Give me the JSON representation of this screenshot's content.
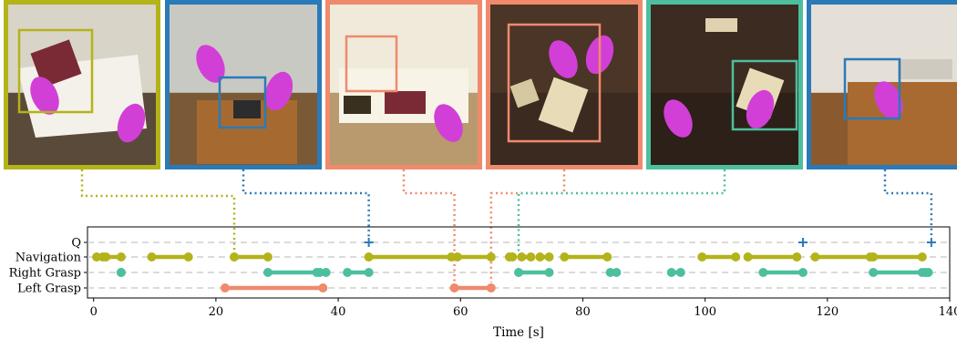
{
  "colors": {
    "navigation": "#b3b31a",
    "right_grasp": "#4dbf9e",
    "left_grasp": "#ef8a6d",
    "query": "#2a7ab8"
  },
  "thumbnails": [
    {
      "border": "#b3b31a",
      "scene": "office-table-book-hand"
    },
    {
      "border": "#2a7ab8",
      "scene": "shelf-hands-reaching"
    },
    {
      "border": "#ef8a6d",
      "scene": "table-books-hand"
    },
    {
      "border": "#ef8a6d",
      "scene": "floor-books-hands"
    },
    {
      "border": "#4dbf9e",
      "scene": "floor-book-hand"
    },
    {
      "border": "#2a7ab8",
      "scene": "corner-shelf-hand"
    }
  ],
  "chart_data": {
    "type": "timeline",
    "xlabel": "Time [s]",
    "xlim": [
      -1,
      140
    ],
    "xticks": [
      0,
      20,
      40,
      60,
      80,
      100,
      120,
      140
    ],
    "rows": [
      "Q",
      "Navigation",
      "Right Grasp",
      "Left Grasp"
    ],
    "query_marks": [
      45,
      116,
      137
    ],
    "segments": {
      "Navigation": [
        [
          0.5,
          1.5
        ],
        [
          2.0,
          4.5
        ],
        [
          9.5,
          15.5
        ],
        [
          23,
          28.5
        ],
        [
          45,
          58.5
        ],
        [
          59.5,
          65
        ],
        [
          68,
          68.5
        ],
        [
          70,
          71.5
        ],
        [
          73,
          74.5
        ],
        [
          77,
          84
        ],
        [
          99.5,
          105
        ],
        [
          107,
          115
        ],
        [
          118,
          127
        ],
        [
          127.5,
          135.5
        ]
      ],
      "Right Grasp": [
        [
          4.5,
          4.5
        ],
        [
          28.5,
          36.5
        ],
        [
          37,
          38
        ],
        [
          41.5,
          45
        ],
        [
          69.5,
          74.5
        ],
        [
          84.5,
          85.5
        ],
        [
          94.5,
          96
        ],
        [
          109.5,
          116
        ],
        [
          127.5,
          135.5
        ],
        [
          136,
          136.5
        ]
      ],
      "Left Grasp": [
        [
          21.5,
          37.5
        ],
        [
          59,
          65
        ]
      ]
    },
    "links": [
      {
        "thumb": 0,
        "time": 23
      },
      {
        "thumb": 1,
        "time": 45
      },
      {
        "thumb": 2,
        "time": 59
      },
      {
        "thumb": 3,
        "time": 65
      },
      {
        "thumb": 4,
        "time": 69.5
      },
      {
        "thumb": 5,
        "time": 137
      }
    ]
  }
}
